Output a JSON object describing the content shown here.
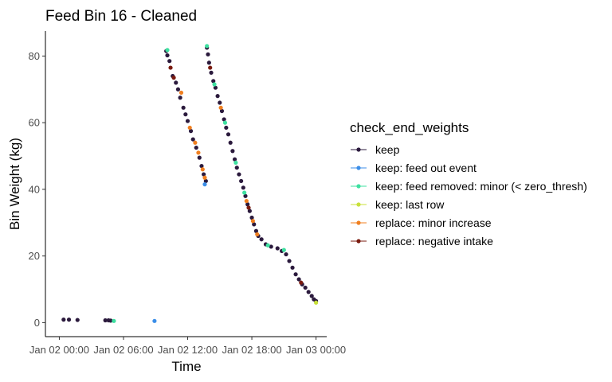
{
  "chart_data": {
    "type": "scatter",
    "title": "Feed Bin 16 - Cleaned",
    "xlabel": "Time",
    "ylabel": "Bin Weight (kg)",
    "x_ticks": [
      {
        "value": 0,
        "label": "Jan 02 00:00"
      },
      {
        "value": 6,
        "label": "Jan 02 06:00"
      },
      {
        "value": 12,
        "label": "Jan 02 12:00"
      },
      {
        "value": 18,
        "label": "Jan 02 18:00"
      },
      {
        "value": 24,
        "label": "Jan 03 00:00"
      }
    ],
    "y_ticks": [
      0,
      20,
      40,
      60,
      80
    ],
    "xlim": [
      -1.3,
      25.0
    ],
    "ylim": [
      -4.2,
      87.5
    ],
    "grid": false,
    "legend": {
      "title": "check_end_weights",
      "position": "right"
    },
    "series": [
      {
        "name": "keep",
        "color": "#2b1a3d",
        "points": [
          [
            0.4,
            0.9
          ],
          [
            0.9,
            0.9
          ],
          [
            1.7,
            0.8
          ],
          [
            4.3,
            0.7
          ],
          [
            4.6,
            0.7
          ],
          [
            4.8,
            0.6
          ],
          [
            10.0,
            81.5
          ],
          [
            10.1,
            80.2
          ],
          [
            10.3,
            78.5
          ],
          [
            10.6,
            74.0
          ],
          [
            10.9,
            72.0
          ],
          [
            11.1,
            70.0
          ],
          [
            11.3,
            67.5
          ],
          [
            11.6,
            64.5
          ],
          [
            11.8,
            62.5
          ],
          [
            12.0,
            60.5
          ],
          [
            12.3,
            57.5
          ],
          [
            12.5,
            55.0
          ],
          [
            12.8,
            52.5
          ],
          [
            13.1,
            49.5
          ],
          [
            13.3,
            47.0
          ],
          [
            13.5,
            44.5
          ],
          [
            13.7,
            42.5
          ],
          [
            13.8,
            82.5
          ],
          [
            13.9,
            80.5
          ],
          [
            14.0,
            78.0
          ],
          [
            14.2,
            75.0
          ],
          [
            14.4,
            72.5
          ],
          [
            14.6,
            70.5
          ],
          [
            14.8,
            68.0
          ],
          [
            15.0,
            66.0
          ],
          [
            15.2,
            63.5
          ],
          [
            15.4,
            61.0
          ],
          [
            15.6,
            58.5
          ],
          [
            15.8,
            56.5
          ],
          [
            16.0,
            54.0
          ],
          [
            16.2,
            51.5
          ],
          [
            16.4,
            49.0
          ],
          [
            16.6,
            46.5
          ],
          [
            16.8,
            44.5
          ],
          [
            17.0,
            42.5
          ],
          [
            17.2,
            40.5
          ],
          [
            17.4,
            38.0
          ],
          [
            17.6,
            35.5
          ],
          [
            17.8,
            33.5
          ],
          [
            18.0,
            31.5
          ],
          [
            18.2,
            29.5
          ],
          [
            18.4,
            27.5
          ],
          [
            18.6,
            26.0
          ],
          [
            18.9,
            25.0
          ],
          [
            19.3,
            23.5
          ],
          [
            19.8,
            22.8
          ],
          [
            20.4,
            22.3
          ],
          [
            20.8,
            21.5
          ],
          [
            21.2,
            20.5
          ],
          [
            21.5,
            18.5
          ],
          [
            21.8,
            16.5
          ],
          [
            22.1,
            14.5
          ],
          [
            22.4,
            13.0
          ],
          [
            22.7,
            11.5
          ],
          [
            23.0,
            10.5
          ],
          [
            23.3,
            9.2
          ],
          [
            23.6,
            8.0
          ],
          [
            23.8,
            7.0
          ],
          [
            24.0,
            6.5
          ]
        ]
      },
      {
        "name": "keep: feed out event",
        "color": "#3b8ee8",
        "points": [
          [
            8.9,
            0.5
          ],
          [
            13.6,
            41.5
          ]
        ]
      },
      {
        "name": "keep: feed removed: minor (< zero_thresh)",
        "color": "#3ee0a0",
        "points": [
          [
            5.1,
            0.5
          ],
          [
            10.1,
            81.8
          ],
          [
            13.8,
            83.0
          ],
          [
            14.5,
            71.5
          ],
          [
            15.5,
            60.0
          ],
          [
            16.5,
            48.0
          ],
          [
            17.3,
            39.0
          ],
          [
            19.5,
            23.2
          ],
          [
            21.0,
            21.8
          ]
        ]
      },
      {
        "name": "keep: last row",
        "color": "#c8e03a",
        "points": [
          [
            24.0,
            6.0
          ]
        ]
      },
      {
        "name": "replace: minor increase",
        "color": "#f07f1f",
        "points": [
          [
            11.4,
            69.0
          ],
          [
            12.2,
            58.5
          ],
          [
            12.7,
            54.0
          ],
          [
            13.0,
            51.0
          ],
          [
            13.4,
            46.0
          ],
          [
            13.6,
            43.5
          ],
          [
            15.1,
            64.5
          ],
          [
            17.5,
            36.5
          ],
          [
            18.1,
            30.5
          ],
          [
            18.5,
            26.5
          ]
        ]
      },
      {
        "name": "replace: negative intake",
        "color": "#7a1a0f",
        "points": [
          [
            10.4,
            76.5
          ],
          [
            10.7,
            73.5
          ],
          [
            14.1,
            76.5
          ],
          [
            17.7,
            34.5
          ],
          [
            22.6,
            12.0
          ]
        ]
      }
    ]
  }
}
